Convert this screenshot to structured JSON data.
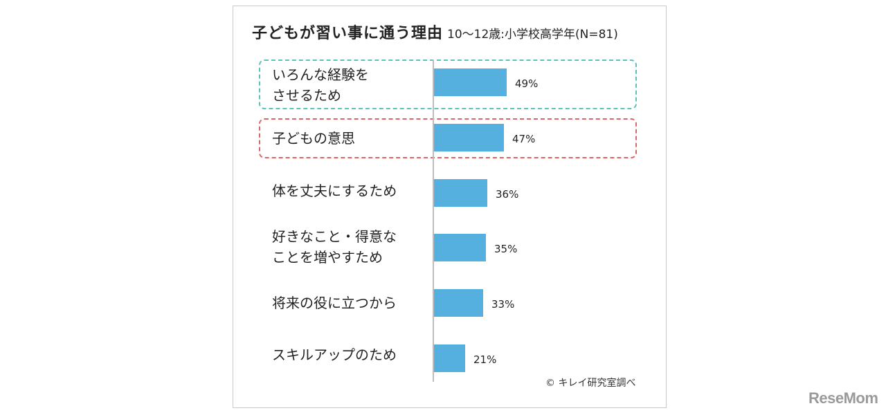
{
  "chart_data": {
    "type": "bar",
    "orientation": "horizontal",
    "title": "子どもが習い事に通う理由",
    "subtitle": "10〜12歳:小学校高学年(N=81)",
    "categories": [
      "いろんな経験を\nさせるため",
      "子どもの意思",
      "体を丈夫にするため",
      "好きなこと・得意な\nことを増やすため",
      "将来の役に立つから",
      "スキルアップのため"
    ],
    "values": [
      49,
      47,
      36,
      35,
      33,
      21
    ],
    "value_labels": [
      "49%",
      "47%",
      "36%",
      "35%",
      "33%",
      "21%"
    ],
    "unit": "%",
    "xlim": [
      0,
      100
    ],
    "grid": false,
    "legend": "none",
    "highlighted": [
      {
        "index": 0,
        "style": "dashed",
        "color": "#58c2bf"
      },
      {
        "index": 1,
        "style": "dashed",
        "color": "#e06262"
      }
    ],
    "bar_color": "#56b0df"
  },
  "source": "© キレイ研究室調べ",
  "watermark": "ReseMom"
}
